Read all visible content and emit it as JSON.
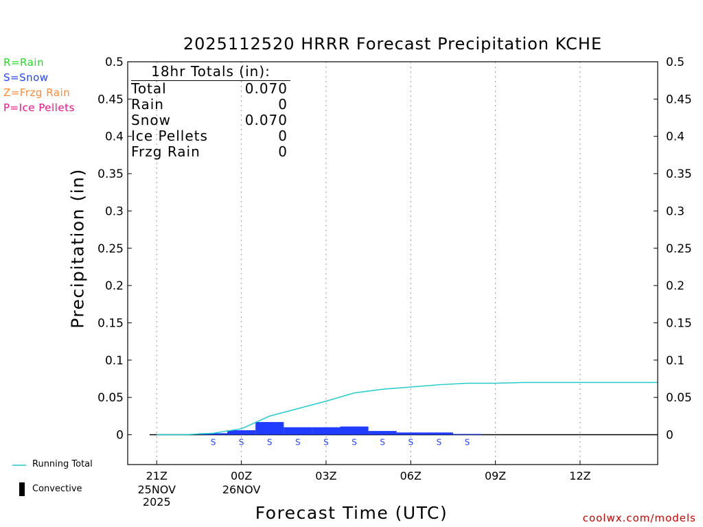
{
  "title": "2025112520 HRRR Forecast Precipitation KCHE",
  "ptype_legend": [
    {
      "label": "R=Rain",
      "color": "#22dd22"
    },
    {
      "label": "S=Snow",
      "color": "#2244ff"
    },
    {
      "label": "Z=Frzg Rain",
      "color": "#ff8833"
    },
    {
      "label": "P=Ice Pellets",
      "color": "#ee1188"
    }
  ],
  "series_legend": {
    "running_total": {
      "label": "Running Total",
      "color": "#22cccc"
    },
    "convective": {
      "label": "Convective",
      "color": "#000000"
    }
  },
  "totals": {
    "header": "18hr Totals (in):",
    "rows": [
      {
        "name": "Total",
        "value": "0.070"
      },
      {
        "name": "Rain",
        "value": "0"
      },
      {
        "name": "Snow",
        "value": "0.070"
      },
      {
        "name": "Ice Pellets",
        "value": "0"
      },
      {
        "name": "Frzg Rain",
        "value": "0"
      }
    ]
  },
  "credit": "coolwx.com/models",
  "chart_data": {
    "type": "bar",
    "title": "2025112520 HRRR Forecast Precipitation KCHE",
    "xlabel": "Forecast Time (UTC)",
    "ylabel": "Precipitation (in)",
    "ylim": [
      -0.04,
      0.5
    ],
    "yticks": [
      0,
      0.05,
      0.1,
      0.15,
      0.2,
      0.25,
      0.3,
      0.35,
      0.4,
      0.45,
      0.5
    ],
    "ytick_labels": [
      "0",
      "0.05",
      "0.1",
      "0.15",
      "0.2",
      "0.25",
      "0.3",
      "0.35",
      "0.4",
      "0.45",
      "0.5"
    ],
    "xlim": [
      20.75,
      38.75
    ],
    "xticks": [
      {
        "hour": 21,
        "label": "21Z",
        "sub": [
          "25NOV",
          "2025"
        ]
      },
      {
        "hour": 24,
        "label": "00Z",
        "sub": [
          "26NOV"
        ]
      },
      {
        "hour": 27,
        "label": "03Z",
        "sub": []
      },
      {
        "hour": 30,
        "label": "06Z",
        "sub": []
      },
      {
        "hour": 33,
        "label": "09Z",
        "sub": []
      },
      {
        "hour": 36,
        "label": "12Z",
        "sub": []
      }
    ],
    "grid": "vertical-dotted",
    "bars": {
      "name": "Snow",
      "color": "#1f3cff",
      "hours": [
        21,
        22,
        23,
        24,
        25,
        26,
        27,
        28,
        29,
        30,
        31,
        32,
        33,
        34,
        35,
        36,
        37,
        38
      ],
      "values": [
        0,
        0,
        0.002,
        0.006,
        0.017,
        0.01,
        0.01,
        0.011,
        0.005,
        0.003,
        0.003,
        0.001,
        0,
        0,
        0,
        0,
        0,
        0
      ]
    },
    "ptype_markers": {
      "label": "S",
      "hours": [
        23,
        24,
        25,
        26,
        27,
        28,
        29,
        30,
        31,
        32
      ]
    },
    "running_total": {
      "name": "Running Total",
      "hours": [
        21,
        22,
        23,
        24,
        25,
        26,
        27,
        28,
        29,
        30,
        31,
        32,
        33,
        34,
        35,
        36,
        37,
        38,
        38.75
      ],
      "values": [
        0,
        0,
        0.002,
        0.008,
        0.025,
        0.035,
        0.045,
        0.056,
        0.061,
        0.064,
        0.067,
        0.069,
        0.069,
        0.07,
        0.07,
        0.07,
        0.07,
        0.07,
        0.07
      ]
    }
  }
}
